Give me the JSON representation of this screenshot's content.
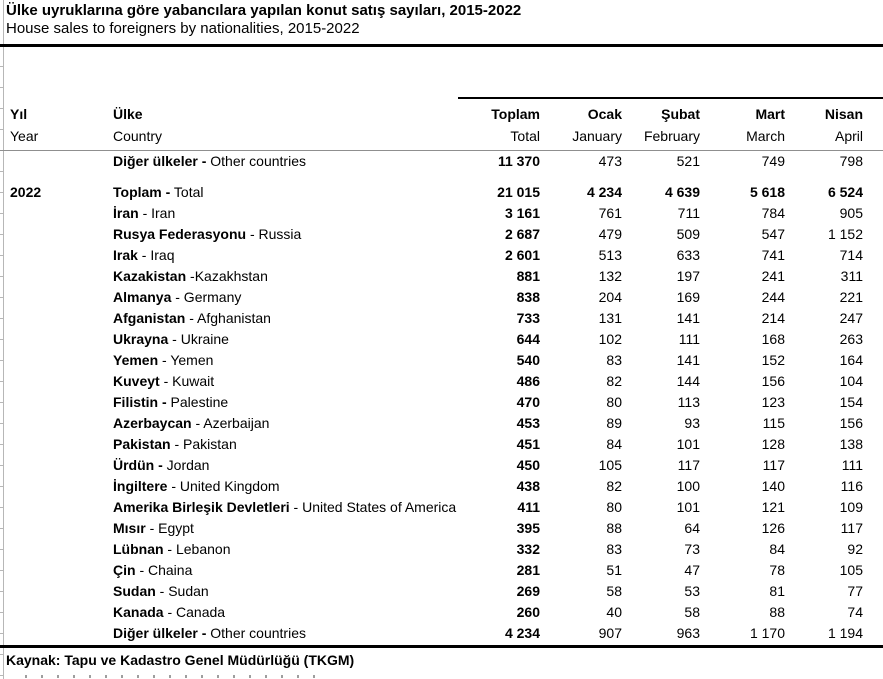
{
  "page": {
    "title_tr": "Ülke uyruklarına göre yabancılara yapılan konut satış sayıları, 2015-2022",
    "title_en": "House sales to foreigners by nationalities, 2015-2022",
    "source": "Kaynak: Tapu ve Kadastro Genel Müdürlüğü (TKGM)"
  },
  "table": {
    "header": {
      "year_tr": "Yıl",
      "year_en": "Year",
      "country_tr": "Ülke",
      "country_en": "Country",
      "months_tr": [
        "Toplam",
        "Ocak",
        "Şubat",
        "Mart",
        "Nisan"
      ],
      "months_en": [
        "Total",
        "January",
        "February",
        "March",
        "April"
      ]
    },
    "rows": [
      {
        "year": "",
        "bold": "Diğer ülkeler -",
        "rest": " Other countries",
        "values": [
          "11 370",
          "473",
          "521",
          "749",
          "798"
        ],
        "all_bold": false
      },
      {
        "spacer": true
      },
      {
        "year": "2022",
        "bold": "Toplam -",
        "rest": " Total",
        "values": [
          "21 015",
          "4 234",
          "4 639",
          "5 618",
          "6 524"
        ],
        "all_bold": true
      },
      {
        "year": "",
        "bold": "İran",
        "rest": " - Iran",
        "values": [
          "3 161",
          "761",
          "711",
          "784",
          "905"
        ],
        "all_bold": false
      },
      {
        "year": "",
        "bold": "Rusya Federasyonu",
        "rest": " - Russia",
        "values": [
          "2 687",
          "479",
          "509",
          "547",
          "1 152"
        ],
        "all_bold": false
      },
      {
        "year": "",
        "bold": "Irak",
        "rest": " - Iraq",
        "values": [
          "2 601",
          "513",
          "633",
          "741",
          "714"
        ],
        "all_bold": false
      },
      {
        "year": "",
        "bold": "Kazakistan",
        "rest": " -Kazakhstan",
        "values": [
          "881",
          "132",
          "197",
          "241",
          "311"
        ],
        "all_bold": false
      },
      {
        "year": "",
        "bold": "Almanya",
        "rest": " - Germany",
        "values": [
          "838",
          "204",
          "169",
          "244",
          "221"
        ],
        "all_bold": false
      },
      {
        "year": "",
        "bold": "Afganistan",
        "rest": " - Afghanistan",
        "values": [
          "733",
          "131",
          "141",
          "214",
          "247"
        ],
        "all_bold": false
      },
      {
        "year": "",
        "bold": "Ukrayna",
        "rest": " - Ukraine",
        "values": [
          "644",
          "102",
          "111",
          "168",
          "263"
        ],
        "all_bold": false
      },
      {
        "year": "",
        "bold": "Yemen",
        "rest": " - Yemen",
        "values": [
          "540",
          "83",
          "141",
          "152",
          "164"
        ],
        "all_bold": false
      },
      {
        "year": "",
        "bold": "Kuveyt",
        "rest": " - Kuwait",
        "values": [
          "486",
          "82",
          "144",
          "156",
          "104"
        ],
        "all_bold": false
      },
      {
        "year": "",
        "bold": "Filistin -",
        "rest": " Palestine",
        "values": [
          "470",
          "80",
          "113",
          "123",
          "154"
        ],
        "all_bold": false
      },
      {
        "year": "",
        "bold": "Azerbaycan",
        "rest": " - Azerbaijan",
        "values": [
          "453",
          "89",
          "93",
          "115",
          "156"
        ],
        "all_bold": false
      },
      {
        "year": "",
        "bold": "Pakistan",
        "rest": " - Pakistan",
        "values": [
          "451",
          "84",
          "101",
          "128",
          "138"
        ],
        "all_bold": false
      },
      {
        "year": "",
        "bold": "Ürdün -",
        "rest": " Jordan",
        "values": [
          "450",
          "105",
          "117",
          "117",
          "111"
        ],
        "all_bold": false
      },
      {
        "year": "",
        "bold": "İngiltere",
        "rest": " - United Kingdom",
        "values": [
          "438",
          "82",
          "100",
          "140",
          "116"
        ],
        "all_bold": false
      },
      {
        "year": "",
        "bold": "Amerika Birleşik Devletleri",
        "rest": " - United States of America",
        "values": [
          "411",
          "80",
          "101",
          "121",
          "109"
        ],
        "all_bold": false
      },
      {
        "year": "",
        "bold": "Mısır",
        "rest": " - Egypt",
        "values": [
          "395",
          "88",
          "64",
          "126",
          "117"
        ],
        "all_bold": false
      },
      {
        "year": "",
        "bold": "Lübnan",
        "rest": " - Lebanon",
        "values": [
          "332",
          "83",
          "73",
          "84",
          "92"
        ],
        "all_bold": false
      },
      {
        "year": "",
        "bold": "Çin",
        "rest": " - Chaina",
        "values": [
          "281",
          "51",
          "47",
          "78",
          "105"
        ],
        "all_bold": false
      },
      {
        "year": "",
        "bold": "Sudan",
        "rest": " - Sudan",
        "values": [
          "269",
          "58",
          "53",
          "81",
          "77"
        ],
        "all_bold": false
      },
      {
        "year": "",
        "bold": "Kanada",
        "rest": " - Canada",
        "values": [
          "260",
          "40",
          "58",
          "88",
          "74"
        ],
        "all_bold": false
      },
      {
        "year": "",
        "bold": "Diğer ülkeler -",
        "rest": " Other countries",
        "values": [
          "4 234",
          "907",
          "963",
          "1 170",
          "1 194"
        ],
        "all_bold": false
      }
    ]
  }
}
